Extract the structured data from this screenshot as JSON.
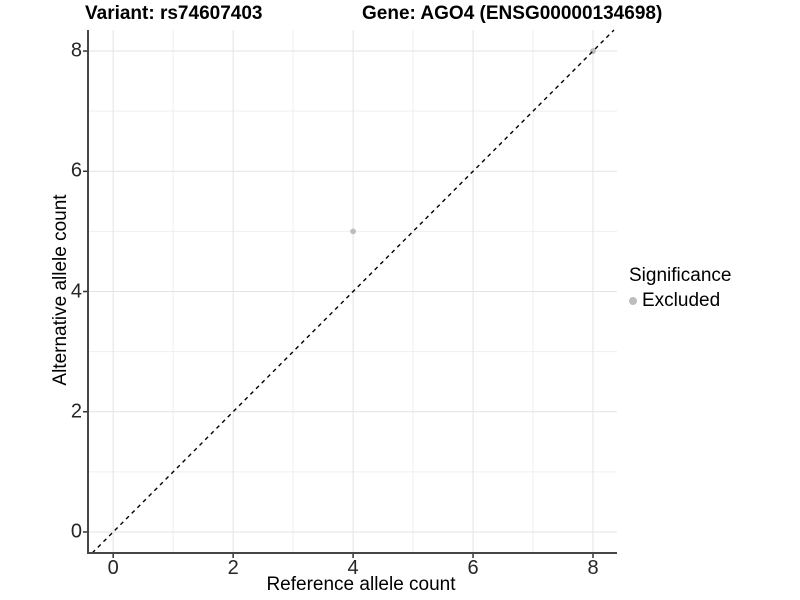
{
  "titles": {
    "variant": "Variant: rs74607403",
    "gene": "Gene: AGO4 (ENSG00000134698)"
  },
  "axes": {
    "x_label": "Reference allele count",
    "y_label": "Alternative allele count"
  },
  "legend": {
    "title": "Significance",
    "items": [
      {
        "label": "Excluded",
        "color": "#bdbdbd",
        "marker": "circle"
      }
    ]
  },
  "chart_data": {
    "type": "scatter",
    "title": "Variant: rs74607403  |  Gene: AGO4 (ENSG00000134698)",
    "xlabel": "Reference allele count",
    "ylabel": "Alternative allele count",
    "xlim": [
      -0.42,
      8.4
    ],
    "ylim": [
      -0.35,
      8.35
    ],
    "x_breaks": [
      0,
      2,
      4,
      6,
      8
    ],
    "y_breaks": [
      0,
      2,
      4,
      6,
      8
    ],
    "x_minor_breaks": [
      1,
      3,
      5,
      7
    ],
    "y_minor_breaks": [
      1,
      3,
      5,
      7
    ],
    "grid": true,
    "legend_position": "right",
    "series": [
      {
        "name": "Excluded",
        "color": "#bdbdbd",
        "points": [
          {
            "x": 4,
            "y": 5
          },
          {
            "x": 8,
            "y": 8
          }
        ]
      }
    ],
    "reference_line": {
      "type": "identity",
      "slope": 1,
      "intercept": 0,
      "style": "dashed",
      "color": "#000000"
    },
    "colors": {
      "grid_major": "#e3e3e3",
      "grid_minor": "#efefef",
      "axis_line": "#464646",
      "tick_mark": "#333333",
      "point": "#bdbdbd"
    }
  }
}
